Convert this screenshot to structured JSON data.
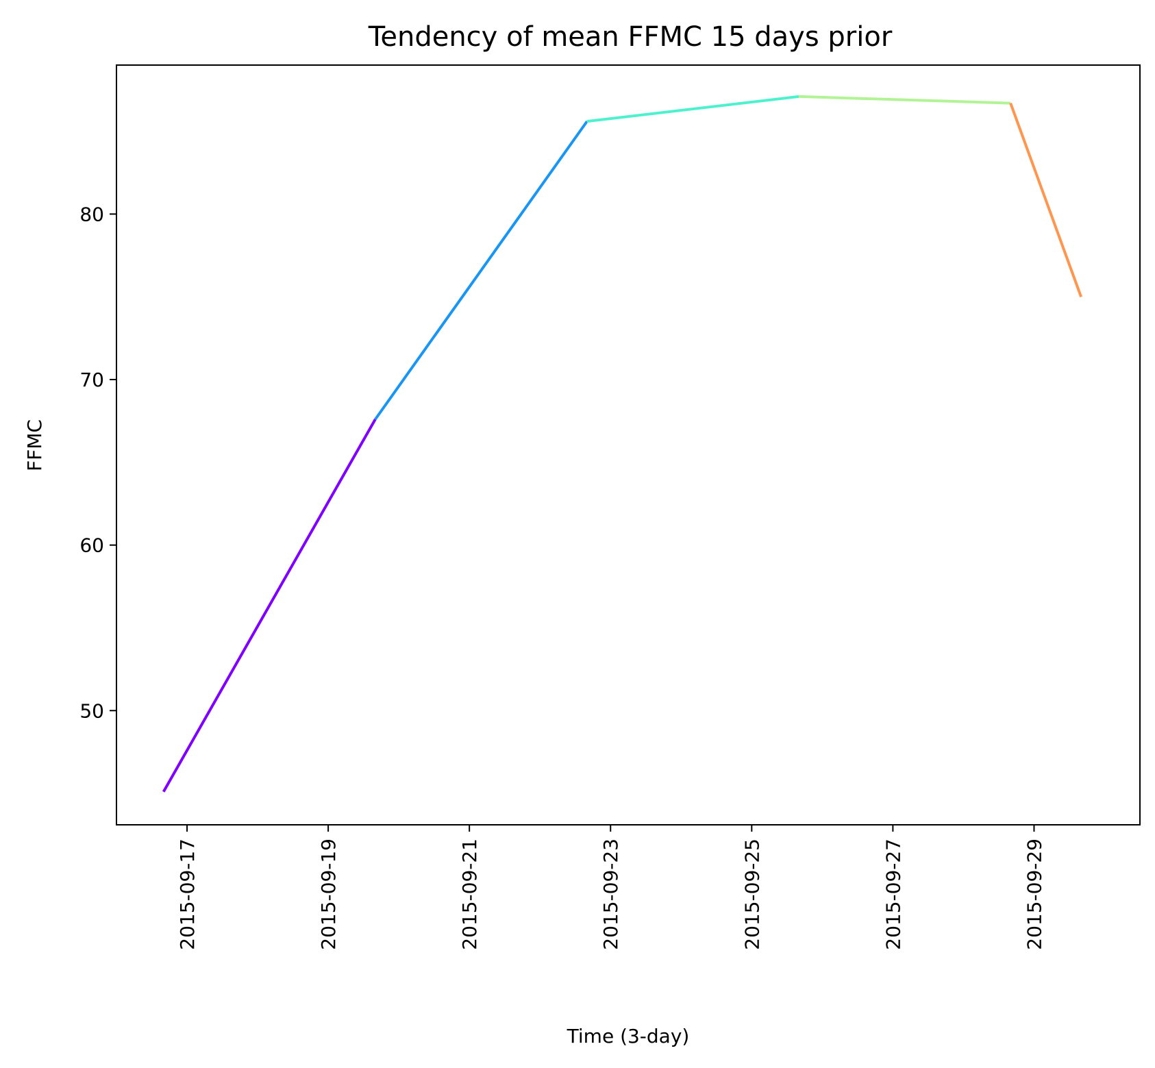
{
  "chart_data": {
    "type": "line",
    "title": "Tendency of mean FFMC 15 days prior",
    "xlabel": "Time (3-day)",
    "ylabel": "FFMC",
    "x_ticks": [
      "2015-09-17",
      "2015-09-19",
      "2015-09-21",
      "2015-09-23",
      "2015-09-25",
      "2015-09-27",
      "2015-09-29"
    ],
    "y_ticks": [
      50,
      60,
      70,
      80
    ],
    "xlim": [
      "2015-09-16T00:00",
      "2015-09-30T12:00"
    ],
    "ylim": [
      43.1,
      89.0
    ],
    "grid": false,
    "colormap": "rainbow",
    "points": [
      {
        "x": "2015-09-16T16:00",
        "y": 45.1
      },
      {
        "x": "2015-09-19T16:00",
        "y": 67.6
      },
      {
        "x": "2015-09-22T16:00",
        "y": 85.6
      },
      {
        "x": "2015-09-25T16:00",
        "y": 87.1
      },
      {
        "x": "2015-09-28T16:00",
        "y": 86.7
      },
      {
        "x": "2015-09-29T16:00",
        "y": 75.0
      }
    ],
    "segment_colors": [
      "#8000ff",
      "#1996f3",
      "#4cf2ce",
      "#b2f396",
      "#ff964f"
    ]
  }
}
